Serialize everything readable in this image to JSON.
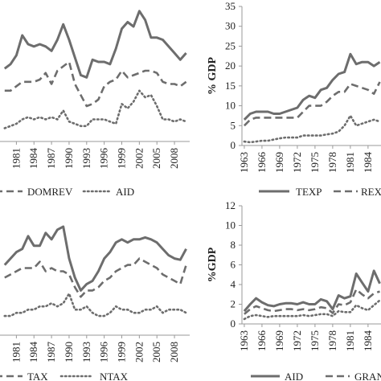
{
  "chart_data": [
    {
      "type": "line",
      "title": "",
      "xlabel": "",
      "ylabel": "",
      "categories": [
        "1981",
        "1984",
        "1987",
        "1990",
        "1993",
        "1996",
        "1999",
        "2002",
        "2005",
        "2008"
      ],
      "x": [
        1979,
        1980,
        1981,
        1982,
        1983,
        1984,
        1985,
        1986,
        1987,
        1988,
        1989,
        1990,
        1991,
        1992,
        1993,
        1994,
        1995,
        1996,
        1997,
        1998,
        1999,
        2000,
        2001,
        2002,
        2003,
        2004,
        2005,
        2006,
        2007,
        2008,
        2009,
        2010
      ],
      "ylim": [
        0,
        32
      ],
      "series": [
        {
          "name": "",
          "style": "solid",
          "values": [
            16.5,
            17.5,
            19.5,
            24,
            22,
            21.5,
            22,
            21.5,
            20.5,
            23,
            26.5,
            23,
            19,
            15,
            14.5,
            18.5,
            18,
            18,
            17.5,
            21,
            25.5,
            27,
            26,
            29.5,
            27.5,
            23.5,
            23.5,
            23,
            21.5,
            20,
            18.5,
            20
          ]
        },
        {
          "name": "DOMREV",
          "style": "dashed",
          "values": [
            11.5,
            11.5,
            12.5,
            13.5,
            13.5,
            13.5,
            14,
            15.5,
            13,
            16,
            17,
            18,
            13,
            10.5,
            8,
            8.5,
            9.5,
            12.5,
            13.5,
            14,
            16,
            14.5,
            15,
            15.5,
            16,
            16,
            15.5,
            13.5,
            13,
            13,
            12.5,
            13.5
          ]
        },
        {
          "name": "AID",
          "style": "dotted",
          "values": [
            3,
            3.5,
            4,
            5,
            5.5,
            5,
            5.5,
            5,
            5.5,
            5,
            7,
            4.5,
            4,
            3.5,
            3.5,
            5,
            5,
            5,
            4.5,
            4,
            8.5,
            7.5,
            9,
            11.5,
            10,
            10.5,
            8,
            5,
            5,
            4.5,
            5,
            4.5
          ]
        }
      ]
    },
    {
      "type": "line",
      "title": "",
      "xlabel": "",
      "ylabel": "% GDP",
      "categories": [
        "1963",
        "1966",
        "1969",
        "1972",
        "1975",
        "1978",
        "1981",
        "1984"
      ],
      "x": [
        1963,
        1964,
        1965,
        1966,
        1967,
        1968,
        1969,
        1970,
        1971,
        1972,
        1973,
        1974,
        1975,
        1976,
        1977,
        1978,
        1979,
        1980,
        1981,
        1982,
        1983,
        1984,
        1985,
        1986
      ],
      "ylim": [
        0,
        35
      ],
      "yticks": [
        0,
        5,
        10,
        15,
        20,
        25,
        30,
        35
      ],
      "series": [
        {
          "name": "TEXP",
          "style": "solid",
          "values": [
            6.5,
            8,
            8.5,
            8.5,
            8.5,
            8,
            8,
            8.5,
            9,
            9.5,
            11.5,
            12.5,
            12,
            14,
            14.5,
            16.5,
            18,
            18.5,
            23,
            20.5,
            21,
            21,
            20,
            21
          ]
        },
        {
          "name": "REX",
          "style": "dashed",
          "values": [
            5,
            6.5,
            7,
            7,
            7,
            7,
            7,
            7,
            7,
            7,
            8.5,
            10,
            10,
            10,
            11,
            12.5,
            13.5,
            13.5,
            15.5,
            15,
            14.5,
            14,
            13,
            16
          ]
        },
        {
          "name": "",
          "style": "dotted",
          "values": [
            1,
            0.8,
            1,
            1.2,
            1.2,
            1.5,
            1.8,
            2,
            2,
            2,
            2.5,
            2.5,
            2.5,
            2.5,
            2.8,
            3,
            3.5,
            5,
            7.5,
            5,
            5.5,
            6,
            6.5,
            6
          ]
        }
      ]
    },
    {
      "type": "line",
      "title": "",
      "xlabel": "",
      "ylabel": "",
      "categories": [
        "1981",
        "1984",
        "1987",
        "1990",
        "1993",
        "1996",
        "1999",
        "2002",
        "2005",
        "2008"
      ],
      "x": [
        1979,
        1980,
        1981,
        1982,
        1983,
        1984,
        1985,
        1986,
        1987,
        1988,
        1989,
        1990,
        1991,
        1992,
        1993,
        1994,
        1995,
        1996,
        1997,
        1998,
        1999,
        2000,
        2001,
        2002,
        2003,
        2004,
        2005,
        2006,
        2007,
        2008,
        2009,
        2010
      ],
      "ylim": [
        0,
        20
      ],
      "series": [
        {
          "name": "",
          "style": "solid",
          "values": [
            11,
            12,
            13,
            13.5,
            15.5,
            14,
            14,
            16,
            15,
            16.5,
            17,
            12,
            9,
            7,
            8,
            8.5,
            10,
            12,
            13,
            14.5,
            15,
            14.5,
            15,
            15,
            15.3,
            15,
            14.5,
            13.5,
            12.5,
            12,
            11.8,
            13.5
          ]
        },
        {
          "name": "TAX",
          "style": "dashed",
          "values": [
            9,
            9.5,
            10,
            10.5,
            10.5,
            10.5,
            11.5,
            10,
            10.5,
            10,
            10,
            9.5,
            7.5,
            6,
            7,
            7,
            7.5,
            8.5,
            9,
            10,
            10.5,
            11,
            11,
            12,
            11.5,
            11,
            10.5,
            9.5,
            9,
            8.5,
            8,
            11
          ]
        },
        {
          "name": "NTAX",
          "style": "dotted",
          "values": [
            3,
            3,
            3.5,
            3.5,
            4,
            4,
            4.5,
            4.5,
            5,
            4.5,
            5,
            6.5,
            4,
            4,
            4.5,
            3.5,
            3,
            3,
            3.5,
            4.5,
            4,
            4,
            3.5,
            3.5,
            4,
            4,
            4.5,
            3.5,
            4,
            4,
            4,
            3.5
          ]
        }
      ]
    },
    {
      "type": "line",
      "title": "",
      "xlabel": "",
      "ylabel": "%GDP",
      "categories": [
        "1963",
        "1966",
        "1969",
        "1972",
        "1975",
        "1978",
        "1981",
        "1984"
      ],
      "x": [
        1963,
        1964,
        1965,
        1966,
        1967,
        1968,
        1969,
        1970,
        1971,
        1972,
        1973,
        1974,
        1975,
        1976,
        1977,
        1978,
        1979,
        1980,
        1981,
        1982,
        1983,
        1984,
        1985,
        1986
      ],
      "ylim": [
        0,
        12
      ],
      "yticks": [
        0,
        2,
        4,
        6,
        8,
        10,
        12
      ],
      "series": [
        {
          "name": "AID",
          "style": "solid",
          "values": [
            1.3,
            2,
            2.6,
            2.2,
            1.9,
            1.8,
            2,
            2.1,
            2.1,
            2,
            2.2,
            2,
            2,
            2.5,
            2.3,
            1.5,
            2.9,
            2.6,
            2.8,
            5.1,
            4.2,
            3.3,
            5.4,
            4.1
          ]
        },
        {
          "name": "GRANT",
          "style": "dashed",
          "values": [
            1,
            1.5,
            1.8,
            1.6,
            1.4,
            1.3,
            1.4,
            1.5,
            1.5,
            1.4,
            1.5,
            1.4,
            1.5,
            1.7,
            1.6,
            1.1,
            2,
            1.9,
            2.2,
            3.5,
            3,
            2.6,
            3.1,
            3.3
          ]
        },
        {
          "name": "",
          "style": "dotted",
          "values": [
            0.5,
            0.8,
            0.9,
            0.8,
            0.7,
            0.8,
            0.8,
            0.8,
            0.8,
            0.8,
            0.9,
            0.8,
            0.9,
            1,
            1,
            0.8,
            1.3,
            1.2,
            1.2,
            1.9,
            1.6,
            1.4,
            1.9,
            2.4
          ]
        }
      ]
    }
  ]
}
